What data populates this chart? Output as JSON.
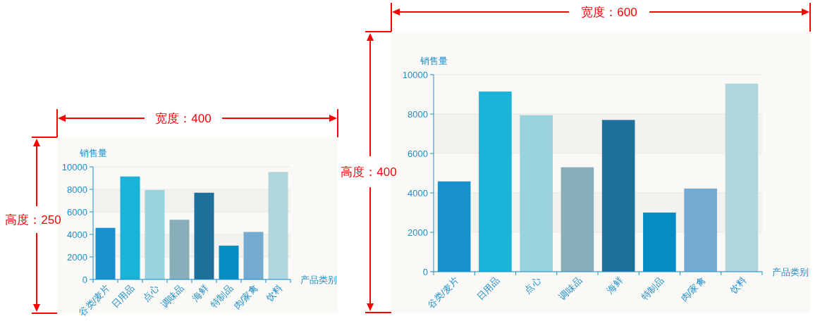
{
  "chart_data": [
    {
      "type": "bar",
      "ylabel": "销售量",
      "xlabel": "产品类别",
      "categories": [
        "谷类/麦片",
        "日用品",
        "点心",
        "调味品",
        "海鲜",
        "特制品",
        "肉/家禽",
        "饮料"
      ],
      "values": [
        4580,
        9140,
        7940,
        5300,
        7700,
        3000,
        4220,
        9540
      ],
      "colors": [
        "#1890ce",
        "#1bb2d8",
        "#9ad2dd",
        "#88afb9",
        "#1e6f99",
        "#058cc4",
        "#76abd1",
        "#afd6dd"
      ],
      "ylim": [
        0,
        10000
      ],
      "yticks": [
        0,
        2000,
        4000,
        6000,
        8000,
        10000
      ],
      "grid": "y",
      "annotations": [
        "宽度：400",
        "高度：250"
      ]
    },
    {
      "type": "bar",
      "ylabel": "销售量",
      "xlabel": "产品类别",
      "categories": [
        "谷类/麦片",
        "日用品",
        "点心",
        "调味品",
        "海鲜",
        "特制品",
        "肉/家禽",
        "饮料"
      ],
      "values": [
        4580,
        9140,
        7940,
        5300,
        7700,
        3000,
        4220,
        9540
      ],
      "colors": [
        "#1890ce",
        "#1bb2d8",
        "#9ad2dd",
        "#88afb9",
        "#1e6f99",
        "#058cc4",
        "#76abd1",
        "#afd6dd"
      ],
      "ylim": [
        0,
        10000
      ],
      "yticks": [
        0,
        2000,
        4000,
        6000,
        8000,
        10000
      ],
      "grid": "y",
      "annotations": [
        "宽度：600",
        "高度：400"
      ]
    }
  ]
}
